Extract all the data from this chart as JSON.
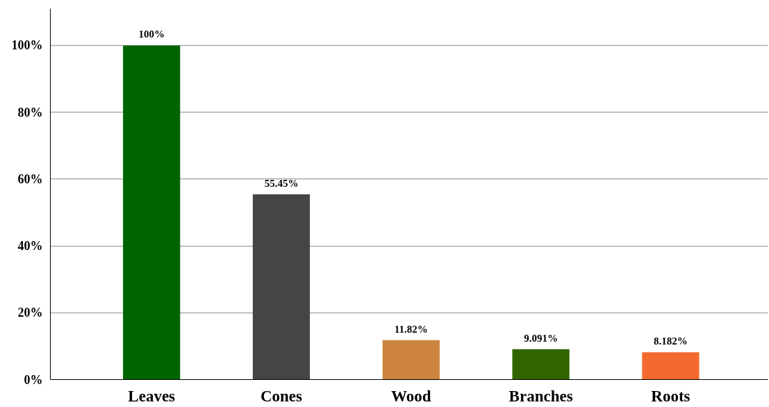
{
  "chart_data": {
    "type": "bar",
    "categories": [
      "Leaves",
      "Cones",
      "Wood",
      "Branches",
      "Roots"
    ],
    "values": [
      100,
      55.45,
      11.82,
      9.091,
      8.182
    ],
    "colors": [
      "#006400",
      "#454545",
      "#cd853f",
      "#326400",
      "#f4692f"
    ],
    "value_labels": [
      "100%",
      "55.45%",
      "11.82%",
      "9.091%",
      "8.182%"
    ],
    "ylim": [
      0,
      111
    ],
    "yticks": [
      {
        "value": 0,
        "label": "0%"
      },
      {
        "value": 20,
        "label": "20%"
      },
      {
        "value": 40,
        "label": "40%"
      },
      {
        "value": 60,
        "label": "60%"
      },
      {
        "value": 80,
        "label": "80%"
      },
      {
        "value": 100,
        "label": "100%"
      }
    ],
    "grid": "y"
  }
}
